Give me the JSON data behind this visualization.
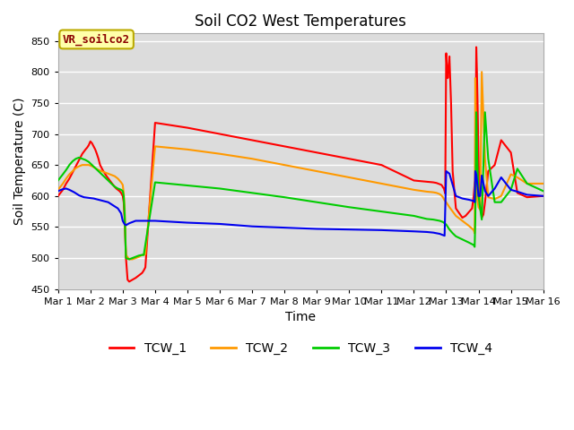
{
  "title": "Soil CO2 West Temperatures",
  "xlabel": "Time",
  "ylabel": "Soil Temperature (C)",
  "ylim": [
    450,
    862
  ],
  "yticks": [
    450,
    500,
    550,
    600,
    650,
    700,
    750,
    800,
    850
  ],
  "background_color": "#dcdcdc",
  "annotation_text": "VR_soilco2",
  "annotation_bg": "#ffffaa",
  "annotation_border": "#bbaa00",
  "legend_entries": [
    "TCW_1",
    "TCW_2",
    "TCW_3",
    "TCW_4"
  ],
  "line_colors": [
    "#ff0000",
    "#ff9900",
    "#00cc00",
    "#0000ee"
  ],
  "x_labels": [
    "Mar 1",
    "Mar 2",
    "Mar 3",
    "Mar 4",
    "Mar 5",
    "Mar 6",
    "Mar 7",
    "Mar 8",
    "Mar 9",
    "Mar 10",
    "Mar 11",
    "Mar 12",
    "Mar 13",
    "Mar 14",
    "Mar 15",
    "Mar 16"
  ],
  "TCW_1_x": [
    0,
    0.15,
    0.25,
    0.35,
    0.45,
    0.55,
    0.65,
    0.75,
    0.85,
    0.9,
    0.95,
    1.0,
    1.05,
    1.1,
    1.15,
    1.2,
    1.25,
    1.3,
    1.4,
    1.5,
    1.6,
    1.7,
    1.8,
    1.9,
    1.95,
    2.0,
    2.03,
    2.06,
    2.1,
    2.15,
    2.2,
    2.3,
    2.4,
    2.5,
    2.6,
    2.65,
    2.7,
    3.0,
    4.0,
    5.0,
    6.0,
    7.0,
    8.0,
    9.0,
    10.0,
    11.0,
    11.2,
    11.4,
    11.6,
    11.7,
    11.75,
    11.8,
    11.85,
    11.88,
    11.9,
    11.93,
    11.95,
    11.97,
    12.0,
    12.02,
    12.05,
    12.08,
    12.1,
    12.15,
    12.2,
    12.3,
    12.5,
    12.6,
    12.8,
    12.85,
    12.88,
    12.9,
    12.93,
    12.95,
    12.97,
    13.0,
    13.03,
    13.06,
    13.08,
    13.1,
    13.15,
    13.2,
    13.3,
    13.5,
    13.7,
    14.0,
    14.2,
    14.5,
    15.0
  ],
  "TCW_1_y": [
    600,
    610,
    620,
    628,
    638,
    648,
    658,
    668,
    675,
    678,
    682,
    688,
    685,
    680,
    675,
    668,
    660,
    650,
    640,
    632,
    625,
    618,
    612,
    608,
    605,
    600,
    590,
    560,
    500,
    465,
    462,
    465,
    468,
    472,
    476,
    480,
    485,
    718,
    710,
    700,
    690,
    680,
    670,
    660,
    650,
    625,
    624,
    623,
    622,
    621,
    620,
    619,
    618,
    616,
    614,
    612,
    608,
    604,
    830,
    810,
    790,
    812,
    825,
    750,
    640,
    580,
    565,
    568,
    580,
    600,
    620,
    625,
    840,
    800,
    750,
    660,
    600,
    580,
    580,
    565,
    570,
    590,
    640,
    650,
    690,
    670,
    605,
    598,
    600
  ],
  "TCW_2_x": [
    0,
    0.15,
    0.25,
    0.35,
    0.45,
    0.55,
    0.65,
    0.75,
    0.85,
    0.95,
    1.05,
    1.15,
    1.25,
    1.35,
    1.45,
    1.55,
    1.65,
    1.75,
    1.85,
    1.95,
    2.0,
    2.03,
    2.06,
    2.1,
    2.2,
    2.3,
    2.4,
    2.5,
    2.6,
    2.65,
    2.7,
    3.0,
    4.0,
    5.0,
    6.0,
    7.0,
    8.0,
    9.0,
    10.0,
    11.0,
    11.4,
    11.6,
    11.7,
    11.75,
    11.8,
    11.85,
    11.9,
    11.95,
    12.0,
    12.05,
    12.1,
    12.2,
    12.3,
    12.5,
    12.7,
    12.85,
    12.88,
    12.9,
    12.93,
    12.96,
    13.0,
    13.05,
    13.1,
    13.2,
    13.3,
    13.5,
    13.7,
    14.0,
    14.2,
    14.5,
    15.0
  ],
  "TCW_2_y": [
    610,
    620,
    628,
    635,
    640,
    645,
    648,
    650,
    650,
    650,
    648,
    645,
    642,
    640,
    638,
    636,
    634,
    632,
    628,
    622,
    618,
    605,
    580,
    505,
    498,
    498,
    500,
    502,
    505,
    505,
    506,
    680,
    675,
    668,
    660,
    650,
    640,
    630,
    620,
    610,
    607,
    606,
    605,
    604,
    603,
    601,
    598,
    593,
    590,
    586,
    582,
    575,
    568,
    560,
    552,
    545,
    540,
    790,
    670,
    595,
    582,
    578,
    800,
    660,
    598,
    595,
    600,
    635,
    630,
    620,
    620
  ],
  "TCW_3_x": [
    0,
    0.15,
    0.25,
    0.35,
    0.45,
    0.55,
    0.65,
    0.75,
    0.85,
    0.95,
    1.05,
    1.15,
    1.25,
    1.35,
    1.45,
    1.55,
    1.65,
    1.75,
    1.85,
    1.95,
    2.0,
    2.03,
    2.06,
    2.1,
    2.2,
    2.3,
    2.4,
    2.5,
    2.6,
    2.65,
    3.0,
    4.0,
    5.0,
    6.0,
    7.0,
    8.0,
    9.0,
    10.0,
    11.0,
    11.4,
    11.6,
    11.7,
    11.8,
    11.85,
    11.9,
    11.95,
    12.0,
    12.05,
    12.1,
    12.2,
    12.3,
    12.5,
    12.7,
    12.85,
    12.88,
    12.9,
    12.93,
    12.96,
    13.0,
    13.05,
    13.1,
    13.2,
    13.3,
    13.5,
    13.7,
    14.0,
    14.2,
    14.5,
    15.0
  ],
  "TCW_3_y": [
    625,
    635,
    642,
    650,
    656,
    660,
    662,
    660,
    658,
    655,
    650,
    645,
    640,
    635,
    630,
    625,
    620,
    615,
    612,
    610,
    608,
    600,
    570,
    500,
    498,
    500,
    502,
    504,
    505,
    505,
    622,
    617,
    612,
    605,
    598,
    590,
    582,
    575,
    568,
    563,
    562,
    561,
    560,
    559,
    558,
    556,
    554,
    550,
    546,
    540,
    535,
    530,
    525,
    521,
    518,
    560,
    735,
    660,
    600,
    580,
    562,
    735,
    660,
    590,
    590,
    610,
    644,
    620,
    608
  ],
  "TCW_4_x": [
    0,
    0.15,
    0.25,
    0.35,
    0.5,
    0.65,
    0.8,
    0.95,
    1.1,
    1.25,
    1.4,
    1.55,
    1.7,
    1.85,
    1.95,
    2.0,
    2.05,
    2.1,
    2.2,
    2.3,
    2.4,
    2.6,
    3.0,
    4.0,
    5.0,
    6.0,
    7.0,
    8.0,
    9.0,
    10.0,
    11.0,
    11.4,
    11.6,
    11.7,
    11.8,
    11.85,
    11.9,
    11.95,
    12.0,
    12.05,
    12.1,
    12.2,
    12.3,
    12.5,
    12.7,
    12.85,
    12.88,
    12.9,
    12.93,
    13.0,
    13.05,
    13.1,
    13.2,
    13.3,
    13.5,
    13.7,
    14.0,
    14.2,
    14.5,
    15.0
  ],
  "TCW_4_y": [
    608,
    611,
    612,
    610,
    606,
    601,
    598,
    597,
    596,
    594,
    592,
    590,
    585,
    580,
    572,
    560,
    555,
    553,
    556,
    558,
    560,
    560,
    560,
    557,
    555,
    551,
    549,
    547,
    546,
    545,
    543,
    542,
    541,
    540,
    539,
    538,
    537,
    536,
    640,
    638,
    636,
    618,
    600,
    596,
    594,
    592,
    590,
    640,
    635,
    600,
    600,
    633,
    608,
    600,
    612,
    630,
    610,
    607,
    602,
    600
  ]
}
